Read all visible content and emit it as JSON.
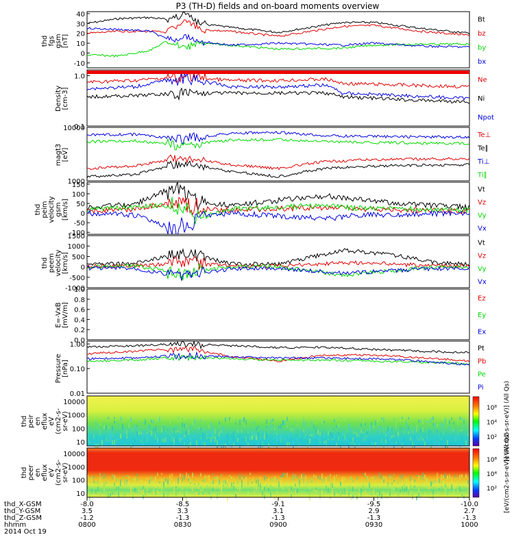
{
  "title": "P3 (TH-D) fields and on-board moments overview",
  "colors": {
    "black": "#000000",
    "red": "#e00000",
    "green": "#00d800",
    "blue": "#0000e0"
  },
  "chart_data": [
    {
      "type": "line",
      "ylabel": [
        "thd",
        "fgs",
        "gsm",
        "[nT]"
      ],
      "yticks": [
        "40",
        "30",
        "20",
        "10",
        "0",
        "-10"
      ],
      "ylim": [
        -15,
        42
      ],
      "series": [
        {
          "name": "Bt",
          "color": "black",
          "x": [
            "0800",
            "0810",
            "0820",
            "0825",
            "0831",
            "0835",
            "0845",
            "0900",
            "0920",
            "0930",
            "0945",
            "1000"
          ],
          "values": [
            30,
            35,
            36,
            34,
            40,
            30,
            26,
            21,
            31,
            31,
            25,
            20
          ]
        },
        {
          "name": "bz",
          "color": "red",
          "x": [
            "0800",
            "0810",
            "0820",
            "0825",
            "0831",
            "0835",
            "0845",
            "0900",
            "0920",
            "0930",
            "0945",
            "1000"
          ],
          "values": [
            20,
            22,
            22,
            21,
            33,
            24,
            22,
            17,
            27,
            28,
            22,
            18
          ]
        },
        {
          "name": "by",
          "color": "green",
          "x": [
            "0800",
            "0810",
            "0820",
            "0825",
            "0831",
            "0835",
            "0845",
            "0900",
            "0920",
            "0930",
            "0945",
            "1000"
          ],
          "values": [
            -2,
            -3,
            3,
            12,
            6,
            10,
            8,
            4,
            5,
            8,
            9,
            9
          ]
        },
        {
          "name": "bx",
          "color": "blue",
          "x": [
            "0800",
            "0810",
            "0820",
            "0825",
            "0831",
            "0835",
            "0845",
            "0900",
            "0920",
            "0930",
            "0945",
            "1000"
          ],
          "values": [
            25,
            24,
            22,
            14,
            16,
            12,
            8,
            10,
            8,
            10,
            7,
            6
          ]
        }
      ]
    },
    {
      "type": "line",
      "ylabel": [
        "Density",
        "[cm-3]"
      ],
      "yticks": [
        "1.0",
        "0.1"
      ],
      "ylim": [
        0.1,
        1.3
      ],
      "log": true,
      "series": [
        {
          "name": "Ne",
          "color": "red",
          "x": [
            "0800",
            "0815",
            "0830",
            "0845",
            "0900",
            "0915",
            "0920",
            "0940",
            "1000"
          ],
          "values": [
            0.75,
            0.8,
            0.95,
            0.8,
            0.8,
            0.85,
            0.7,
            0.65,
            0.6
          ]
        },
        {
          "name": "Ni",
          "color": "black",
          "x": [
            "0800",
            "0815",
            "0830",
            "0845",
            "0900",
            "0915",
            "0920",
            "0940",
            "1000"
          ],
          "values": [
            0.38,
            0.4,
            0.45,
            0.45,
            0.45,
            0.45,
            0.38,
            0.33,
            0.3
          ]
        },
        {
          "name": "Npot",
          "color": "blue",
          "x": [
            "0800",
            "0815",
            "0830",
            "0845",
            "0900",
            "0915",
            "0920",
            "0940",
            "1000"
          ],
          "values": [
            0.55,
            0.6,
            0.9,
            0.6,
            0.6,
            0.65,
            0.45,
            0.4,
            0.35
          ]
        }
      ]
    },
    {
      "type": "line",
      "ylabel": [
        "magt3",
        "[eV]"
      ],
      "yticks": [
        "10000",
        "1000"
      ],
      "ylim": [
        1000,
        10000
      ],
      "log": true,
      "series": [
        {
          "name": "Te⊥",
          "color": "red",
          "x": [
            "0800",
            "0815",
            "0830",
            "0845",
            "0900",
            "0915",
            "0930",
            "1000"
          ],
          "values": [
            1700,
            1900,
            2700,
            2000,
            1700,
            2300,
            2500,
            2600
          ]
        },
        {
          "name": "Te∥",
          "color": "black",
          "x": [
            "0800",
            "0815",
            "0830",
            "0845",
            "0900",
            "0915",
            "0930",
            "1000"
          ],
          "values": [
            1200,
            1300,
            2100,
            1500,
            1200,
            1700,
            1900,
            2000
          ]
        },
        {
          "name": "Ti⊥",
          "color": "blue",
          "x": [
            "0800",
            "0815",
            "0830",
            "0845",
            "0900",
            "0915",
            "0930",
            "1000"
          ],
          "values": [
            7200,
            7400,
            6000,
            7800,
            8000,
            7000,
            6800,
            6500
          ]
        },
        {
          "name": "Ti∥",
          "color": "green",
          "x": [
            "0800",
            "0815",
            "0830",
            "0845",
            "0900",
            "0915",
            "0930",
            "1000"
          ],
          "values": [
            5400,
            5600,
            4600,
            5800,
            5900,
            5400,
            5200,
            5000
          ]
        }
      ]
    },
    {
      "type": "line",
      "ylabel": [
        "thd",
        "peim",
        "velocity",
        "gsm",
        "[km/s]"
      ],
      "yticks": [
        "150",
        "100",
        "50",
        "0",
        "-50",
        "-100"
      ],
      "ylim": [
        -110,
        160
      ],
      "series": [
        {
          "name": "Vt",
          "color": "black",
          "x": [
            "0800",
            "0815",
            "0828",
            "0835",
            "0845",
            "0915",
            "0925",
            "0945",
            "1000"
          ],
          "values": [
            30,
            45,
            140,
            60,
            40,
            90,
            70,
            40,
            30
          ]
        },
        {
          "name": "Vz",
          "color": "red",
          "x": [
            "0800",
            "0815",
            "0828",
            "0835",
            "0845",
            "0915",
            "0925",
            "0945",
            "1000"
          ],
          "values": [
            10,
            20,
            60,
            20,
            15,
            30,
            20,
            15,
            10
          ]
        },
        {
          "name": "Vy",
          "color": "green",
          "x": [
            "0800",
            "0815",
            "0828",
            "0835",
            "0845",
            "0915",
            "0925",
            "0945",
            "1000"
          ],
          "values": [
            20,
            30,
            40,
            -30,
            20,
            40,
            25,
            20,
            15
          ]
        },
        {
          "name": "Vx",
          "color": "blue",
          "x": [
            "0800",
            "0815",
            "0828",
            "0835",
            "0845",
            "0915",
            "0925",
            "0945",
            "1000"
          ],
          "values": [
            0,
            -10,
            -90,
            -20,
            0,
            -30,
            -10,
            -5,
            0
          ]
        }
      ]
    },
    {
      "type": "line",
      "ylabel": [
        "thd",
        "peem",
        "velocity",
        "[km/s]"
      ],
      "yticks": [
        "1500",
        "1000",
        "500",
        "0",
        "-500",
        "-1000"
      ],
      "ylim": [
        -1000,
        1500
      ],
      "series": [
        {
          "name": "Vt",
          "color": "black",
          "x": [
            "0800",
            "0815",
            "0830",
            "0845",
            "0900",
            "0920",
            "0935",
            "0950",
            "1000"
          ],
          "values": [
            120,
            150,
            700,
            150,
            120,
            800,
            600,
            200,
            120
          ]
        },
        {
          "name": "Vz",
          "color": "red",
          "x": [
            "0800",
            "0815",
            "0830",
            "0845",
            "0900",
            "0920",
            "0935",
            "0950",
            "1000"
          ],
          "values": [
            20,
            50,
            200,
            50,
            30,
            200,
            150,
            50,
            30
          ]
        },
        {
          "name": "Vy",
          "color": "green",
          "x": [
            "0800",
            "0815",
            "0830",
            "0845",
            "0900",
            "0920",
            "0935",
            "0950",
            "1000"
          ],
          "values": [
            0,
            40,
            -300,
            20,
            10,
            -400,
            -200,
            0,
            0
          ]
        },
        {
          "name": "Vx",
          "color": "blue",
          "x": [
            "0800",
            "0815",
            "0830",
            "0845",
            "0900",
            "0920",
            "0935",
            "0950",
            "1000"
          ],
          "values": [
            -50,
            -60,
            -500,
            -80,
            -60,
            -300,
            -200,
            -80,
            -60
          ]
        }
      ]
    },
    {
      "type": "line",
      "ylabel": [
        "E=-VxB",
        "[mV/m]"
      ],
      "yticks": [
        "1.0",
        "0.8",
        "0.6",
        "0.4",
        "0.2",
        "0.0"
      ],
      "ylim": [
        0,
        1
      ],
      "series": [
        {
          "name": "Ez",
          "color": "red",
          "values": []
        },
        {
          "name": "Ey",
          "color": "green",
          "values": []
        },
        {
          "name": "Ex",
          "color": "blue",
          "values": []
        }
      ]
    },
    {
      "type": "line",
      "ylabel": [
        "Pressure",
        "[nPa]"
      ],
      "yticks": [
        "0.10",
        "1.00",
        "0.01"
      ],
      "ylim": [
        0.01,
        1.3
      ],
      "log": true,
      "series": [
        {
          "name": "Pt",
          "color": "black",
          "x": [
            "0800",
            "0815",
            "0830",
            "0845",
            "0900",
            "0915",
            "0930",
            "0945",
            "1000"
          ],
          "values": [
            0.75,
            0.85,
            1.0,
            0.85,
            0.7,
            0.72,
            0.6,
            0.5,
            0.45
          ]
        },
        {
          "name": "Pb",
          "color": "red",
          "x": [
            "0800",
            "0815",
            "0830",
            "0845",
            "0900",
            "0915",
            "0930",
            "0945",
            "1000"
          ],
          "values": [
            0.4,
            0.5,
            0.65,
            0.3,
            0.2,
            0.35,
            0.35,
            0.28,
            0.2
          ]
        },
        {
          "name": "Pe",
          "color": "green",
          "x": [
            "0800",
            "0815",
            "0830",
            "0845",
            "0900",
            "0915",
            "0930",
            "0945",
            "1000"
          ],
          "values": [
            0.2,
            0.22,
            0.3,
            0.25,
            0.22,
            0.22,
            0.2,
            0.18,
            0.16
          ]
        },
        {
          "name": "Pi",
          "color": "blue",
          "x": [
            "0800",
            "0815",
            "0830",
            "0845",
            "0900",
            "0915",
            "0930",
            "0945",
            "1000"
          ],
          "values": [
            0.25,
            0.27,
            0.35,
            0.3,
            0.27,
            0.27,
            0.25,
            0.2,
            0.14
          ]
        }
      ]
    },
    {
      "type": "heatmap",
      "ylabel": [
        "thd",
        "peir",
        "en",
        "eflux",
        "eV",
        "(cm2-s-",
        "sr-eV)"
      ],
      "yticks": [
        "10000",
        "1000",
        "100",
        "10"
      ],
      "colorbar_ticks": [
        "10⁸",
        "10⁴",
        "10²"
      ],
      "colorbar_label": "[eV/(cm2-s-sr-eV)] (All Qs)"
    },
    {
      "type": "heatmap",
      "ylabel": [
        "thd",
        "peer",
        "en",
        "eflux",
        "eV",
        "(cm2-s-",
        "sr-eV)"
      ],
      "yticks": [
        "10000",
        "1000",
        "100",
        "10"
      ],
      "colorbar_ticks": [
        "10⁸",
        "10⁴",
        "10²"
      ],
      "colorbar_label": "[eV/(cm2-s-sr-eV)] (All Qs)"
    }
  ],
  "xaxis": {
    "row_labels": [
      "thd_X-GSM",
      "thd_Y-GSM",
      "thd_Z-GSM",
      "hhmm",
      "2014 Oct 19"
    ],
    "columns": [
      [
        "-8.0",
        "3.5",
        "-1.2",
        "0800"
      ],
      [
        "-8.5",
        "3.3",
        "-1.3",
        "0830"
      ],
      [
        "-9.1",
        "3.1",
        "-1.3",
        "0900"
      ],
      [
        "-9.5",
        "2.9",
        "-1.3",
        "0930"
      ],
      [
        "-10.0",
        "2.7",
        "-1.3",
        "1000"
      ]
    ]
  }
}
